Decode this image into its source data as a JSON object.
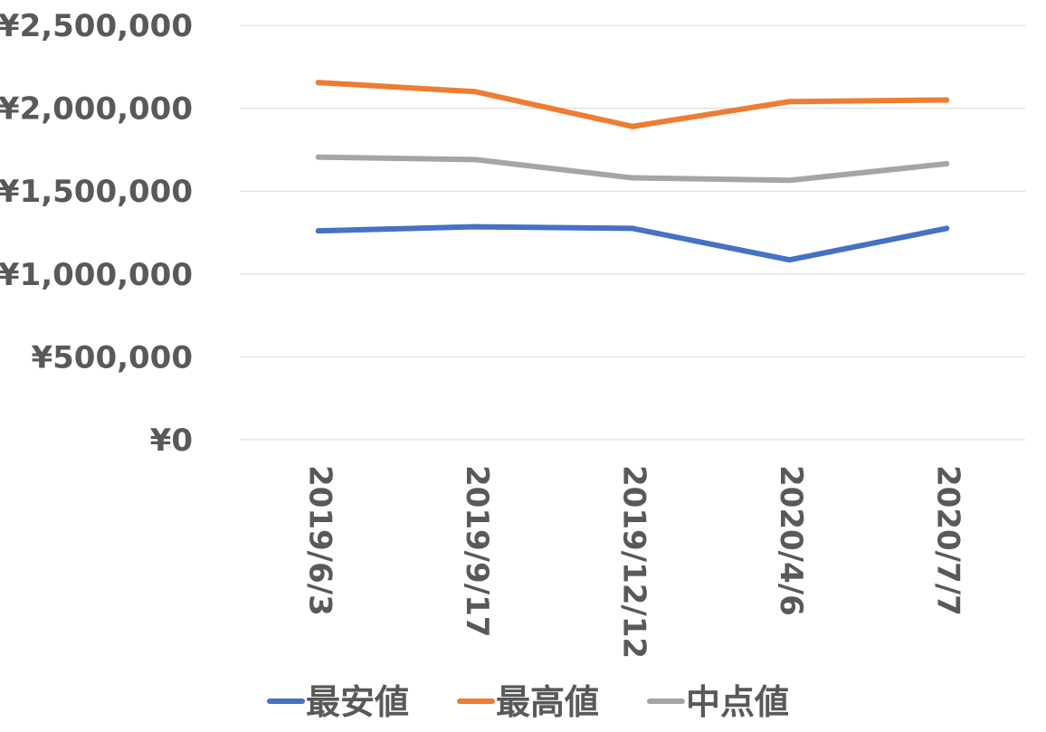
{
  "chart_data": {
    "type": "line",
    "title": "",
    "xlabel": "",
    "ylabel": "",
    "categories": [
      "2019/6/3",
      "2019/9/17",
      "2019/12/12",
      "2020/4/6",
      "2020/7/7"
    ],
    "ylim": [
      0,
      2500000
    ],
    "yticks": [
      0,
      500000,
      1000000,
      1500000,
      2000000,
      2500000
    ],
    "ytick_labels": [
      "¥0",
      "¥500,000",
      "¥1,000,000",
      "¥1,500,000",
      "¥2,000,000",
      "¥2,500,000"
    ],
    "grid": true,
    "legend_position": "bottom",
    "series": [
      {
        "name": "最安値",
        "color": "#4472C4",
        "values": [
          1260000,
          1285000,
          1275000,
          1085000,
          1275000
        ]
      },
      {
        "name": "最高値",
        "color": "#ED7D31",
        "values": [
          2155000,
          2100000,
          1890000,
          2040000,
          2050000
        ]
      },
      {
        "name": "中点値",
        "color": "#A5A5A5",
        "values": [
          1705000,
          1690000,
          1580000,
          1565000,
          1665000
        ]
      }
    ]
  }
}
